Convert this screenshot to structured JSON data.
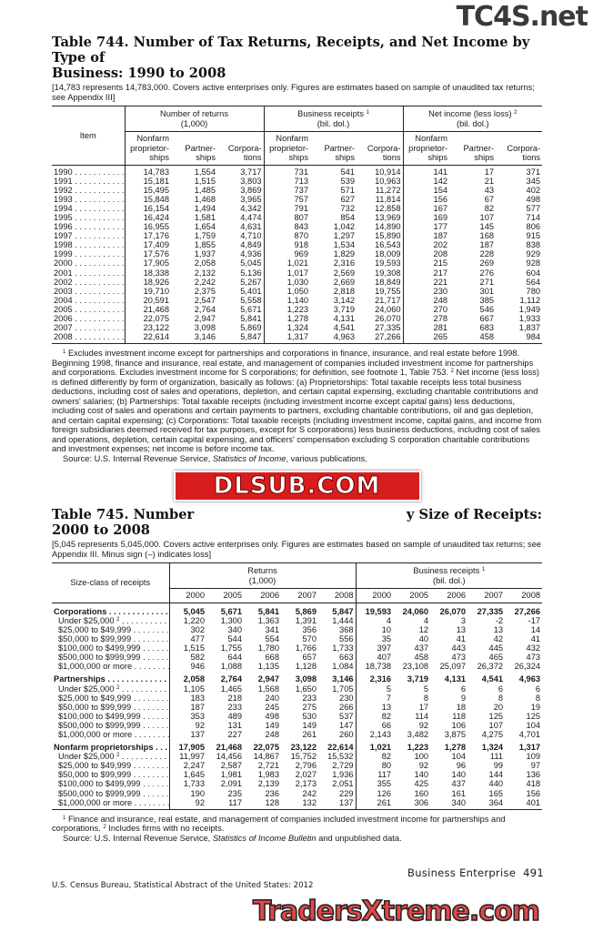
{
  "watermarks": {
    "top": "TC4S.net",
    "middle": "DLSUB.COM",
    "bottom": "TradersXtreme.com"
  },
  "table744": {
    "title_line1": "Table 744. Number of Tax Returns, Receipts, and Net Income by Type of",
    "title_line2": "Business: 1990 to 2008",
    "headnote": "[14,783 represents 14,783,000. Covers active enterprises only. Figures are estimates based on sample of unaudited tax returns; see Appendix III]",
    "stub_header": "Item",
    "groups": [
      {
        "label": "Number of returns",
        "unit": "(1,000)",
        "sup": ""
      },
      {
        "label": "Business receipts",
        "unit": "(bil. dol.)",
        "sup": "1"
      },
      {
        "label": "Net income (less loss)",
        "unit": "(bil. dol.)",
        "sup": "2"
      }
    ],
    "subcolumns": [
      "Nonfarm proprietor-ships",
      "Partner-ships",
      "Corpora-tions"
    ],
    "rows": [
      [
        "1990",
        "14,783",
        "1,554",
        "3,717",
        "731",
        "541",
        "10,914",
        "141",
        "17",
        "371"
      ],
      [
        "1991",
        "15,181",
        "1,515",
        "3,803",
        "713",
        "539",
        "10,963",
        "142",
        "21",
        "345"
      ],
      [
        "1992",
        "15,495",
        "1,485",
        "3,869",
        "737",
        "571",
        "11,272",
        "154",
        "43",
        "402"
      ],
      [
        "1993",
        "15,848",
        "1,468",
        "3,965",
        "757",
        "627",
        "11,814",
        "156",
        "67",
        "498"
      ],
      [
        "1994",
        "16,154",
        "1,494",
        "4,342",
        "791",
        "732",
        "12,858",
        "167",
        "82",
        "577"
      ],
      [
        "1995",
        "16,424",
        "1,581",
        "4,474",
        "807",
        "854",
        "13,969",
        "169",
        "107",
        "714"
      ],
      [
        "1996",
        "16,955",
        "1,654",
        "4,631",
        "843",
        "1,042",
        "14,890",
        "177",
        "145",
        "806"
      ],
      [
        "1997",
        "17,176",
        "1,759",
        "4,710",
        "870",
        "1,297",
        "15,890",
        "187",
        "168",
        "915"
      ],
      [
        "1998",
        "17,409",
        "1,855",
        "4,849",
        "918",
        "1,534",
        "16,543",
        "202",
        "187",
        "838"
      ],
      [
        "1999",
        "17,576",
        "1,937",
        "4,936",
        "969",
        "1,829",
        "18,009",
        "208",
        "228",
        "929"
      ],
      [
        "2000",
        "17,905",
        "2,058",
        "5,045",
        "1,021",
        "2,316",
        "19,593",
        "215",
        "269",
        "928"
      ],
      [
        "2001",
        "18,338",
        "2,132",
        "5,136",
        "1,017",
        "2,569",
        "19,308",
        "217",
        "276",
        "604"
      ],
      [
        "2002",
        "18,926",
        "2,242",
        "5,267",
        "1,030",
        "2,669",
        "18,849",
        "221",
        "271",
        "564"
      ],
      [
        "2003",
        "19,710",
        "2,375",
        "5,401",
        "1,050",
        "2,818",
        "19,755",
        "230",
        "301",
        "780"
      ],
      [
        "2004",
        "20,591",
        "2,547",
        "5,558",
        "1,140",
        "3,142",
        "21,717",
        "248",
        "385",
        "1,112"
      ],
      [
        "2005",
        "21,468",
        "2,764",
        "5,671",
        "1,223",
        "3,719",
        "24,060",
        "270",
        "546",
        "1,949"
      ],
      [
        "2006",
        "22,075",
        "2,947",
        "5,841",
        "1,278",
        "4,131",
        "26,070",
        "278",
        "667",
        "1,933"
      ],
      [
        "2007",
        "23,122",
        "3,098",
        "5,869",
        "1,324",
        "4,541",
        "27,335",
        "281",
        "683",
        "1,837"
      ],
      [
        "2008",
        "22,614",
        "3,146",
        "5,847",
        "1,317",
        "4,963",
        "27,266",
        "265",
        "458",
        "984"
      ]
    ],
    "footnote": "Excludes investment income except for partnerships and corporations in finance, insurance, and real estate before 1998. Beginning 1998, finance and insurance, real estate, and management of companies included investment income for partnerships and corporations. Excludes investment income for S corporations; for definition, see footnote 1, Table 753. ",
    "footnote2": "Net income (less loss) is defined differently by form of organization, basically as follows: (a) Proprietorships: Total taxable receipts less total business deductions, including cost of sales and operations, depletion, and certain capital expensing, excluding charitable contributions and owners' salaries; (b) Partnerships: Total taxable receipts (including investment income except capital gains) less deductions, including cost of sales and operations and certain payments to partners, excluding charitable contributions, oil and gas depletion, and certain capital expensing; (c) Corporations: Total taxable receipts (including investment income, capital gains, and income from foreign subsidiaries deemed received for tax purposes, except for S corporations) less business deductions, including cost of sales and operations, depletion, certain capital expensing, and officers' compensation excluding S corporation charitable contributions and investment expenses; net income is before income tax.",
    "source_prefix": "Source: U.S. Internal Revenue Service, ",
    "source_italic": "Statistics of Income",
    "source_suffix": ", various publications."
  },
  "table745": {
    "title_line1_left": "Table 745. Number",
    "title_line1_right": "y Size of Receipts:",
    "title_line2": "2000 to 2008",
    "headnote": "[5,045 represents 5,045,000. Covers active enterprises only. Figures are estimates based on sample of unaudited tax returns; see Appendix III. Minus sign (–) indicates loss]",
    "stub_header": "Size-class of receipts",
    "groups": [
      {
        "label": "Returns",
        "unit": "(1,000)",
        "sup": ""
      },
      {
        "label": "Business receipts",
        "unit": "(bil. dol.)",
        "sup": "1"
      }
    ],
    "years": [
      "2000",
      "2005",
      "2006",
      "2007",
      "2008"
    ],
    "sections": [
      {
        "rows": [
          {
            "label": "Corporations",
            "bold": true,
            "values": [
              "5,045",
              "5,671",
              "5,841",
              "5,869",
              "5,847",
              "19,593",
              "24,060",
              "26,070",
              "27,335",
              "27,266"
            ]
          },
          {
            "label": "Under $25,000",
            "sup": "2",
            "values": [
              "1,220",
              "1,300",
              "1,363",
              "1,391",
              "1,444",
              "4",
              "4",
              "3",
              "-2",
              "-17"
            ]
          },
          {
            "label": "$25,000 to $49,999",
            "values": [
              "302",
              "340",
              "341",
              "356",
              "368",
              "10",
              "12",
              "13",
              "13",
              "14"
            ]
          },
          {
            "label": "$50,000 to $99,999",
            "values": [
              "477",
              "544",
              "554",
              "570",
              "556",
              "35",
              "40",
              "41",
              "42",
              "41"
            ]
          },
          {
            "label": "$100,000 to $499,999",
            "values": [
              "1,515",
              "1,755",
              "1,780",
              "1,766",
              "1,733",
              "397",
              "437",
              "443",
              "445",
              "432"
            ]
          },
          {
            "label": "$500,000 to $999,999",
            "values": [
              "582",
              "644",
              "668",
              "657",
              "663",
              "407",
              "458",
              "473",
              "465",
              "473"
            ]
          },
          {
            "label": "$1,000,000 or more",
            "values": [
              "946",
              "1,088",
              "1,135",
              "1,128",
              "1,084",
              "18,738",
              "23,108",
              "25,097",
              "26,372",
              "26,324"
            ]
          }
        ]
      },
      {
        "rows": [
          {
            "label": "Partnerships",
            "bold": true,
            "values": [
              "2,058",
              "2,764",
              "2,947",
              "3,098",
              "3,146",
              "2,316",
              "3,719",
              "4,131",
              "4,541",
              "4,963"
            ]
          },
          {
            "label": "Under $25,000",
            "sup": "2",
            "values": [
              "1,105",
              "1,465",
              "1,568",
              "1,650",
              "1,705",
              "5",
              "5",
              "6",
              "6",
              "6"
            ]
          },
          {
            "label": "$25,000 to $49,999",
            "values": [
              "183",
              "218",
              "240",
              "233",
              "230",
              "7",
              "8",
              "9",
              "8",
              "8"
            ]
          },
          {
            "label": "$50,000 to $99,999",
            "values": [
              "187",
              "233",
              "245",
              "275",
              "266",
              "13",
              "17",
              "18",
              "20",
              "19"
            ]
          },
          {
            "label": "$100,000 to $499,999",
            "values": [
              "353",
              "489",
              "498",
              "530",
              "537",
              "82",
              "114",
              "118",
              "125",
              "125"
            ]
          },
          {
            "label": "$500,000 to $999,999",
            "values": [
              "92",
              "131",
              "149",
              "149",
              "147",
              "66",
              "92",
              "106",
              "107",
              "104"
            ]
          },
          {
            "label": "$1,000,000 or more",
            "values": [
              "137",
              "227",
              "248",
              "261",
              "260",
              "2,143",
              "3,482",
              "3,875",
              "4,275",
              "4,701"
            ]
          }
        ]
      },
      {
        "rows": [
          {
            "label": "Nonfarm proprietorships",
            "bold": true,
            "values": [
              "17,905",
              "21,468",
              "22,075",
              "23,122",
              "22,614",
              "1,021",
              "1,223",
              "1,278",
              "1,324",
              "1,317"
            ]
          },
          {
            "label": "Under $25,000",
            "sup": "2",
            "values": [
              "11,997",
              "14,456",
              "14,867",
              "15,752",
              "15,532",
              "82",
              "100",
              "104",
              "111",
              "109"
            ]
          },
          {
            "label": "$25,000 to $49,999",
            "values": [
              "2,247",
              "2,587",
              "2,721",
              "2,796",
              "2,729",
              "80",
              "92",
              "96",
              "99",
              "97"
            ]
          },
          {
            "label": "$50,000 to $99,999",
            "values": [
              "1,645",
              "1,981",
              "1,983",
              "2,027",
              "1,936",
              "117",
              "140",
              "140",
              "144",
              "136"
            ]
          },
          {
            "label": "$100,000 to $499,999",
            "values": [
              "1,733",
              "2,091",
              "2,139",
              "2,173",
              "2,051",
              "355",
              "425",
              "437",
              "440",
              "418"
            ]
          },
          {
            "label": "$500,000 to $999,999",
            "values": [
              "190",
              "235",
              "236",
              "242",
              "229",
              "126",
              "160",
              "161",
              "165",
              "156"
            ]
          },
          {
            "label": "$1,000,000 or more",
            "values": [
              "92",
              "117",
              "128",
              "132",
              "137",
              "261",
              "306",
              "340",
              "364",
              "401"
            ]
          }
        ]
      }
    ],
    "footnote1": "Finance and insurance, real estate, and management of companies included investment income for partnerships and corporations. ",
    "footnote2": "Includes firms with no receipts.",
    "source_prefix": "Source: U.S. Internal Revenue Service, ",
    "source_italic": "Statistics of Income Bulletin",
    "source_suffix": " and unpublished data."
  },
  "footer": {
    "section": "Business Enterprise",
    "page": "491",
    "publication": "U.S. Census Bureau, Statistical Abstract of the United States: 2012"
  }
}
